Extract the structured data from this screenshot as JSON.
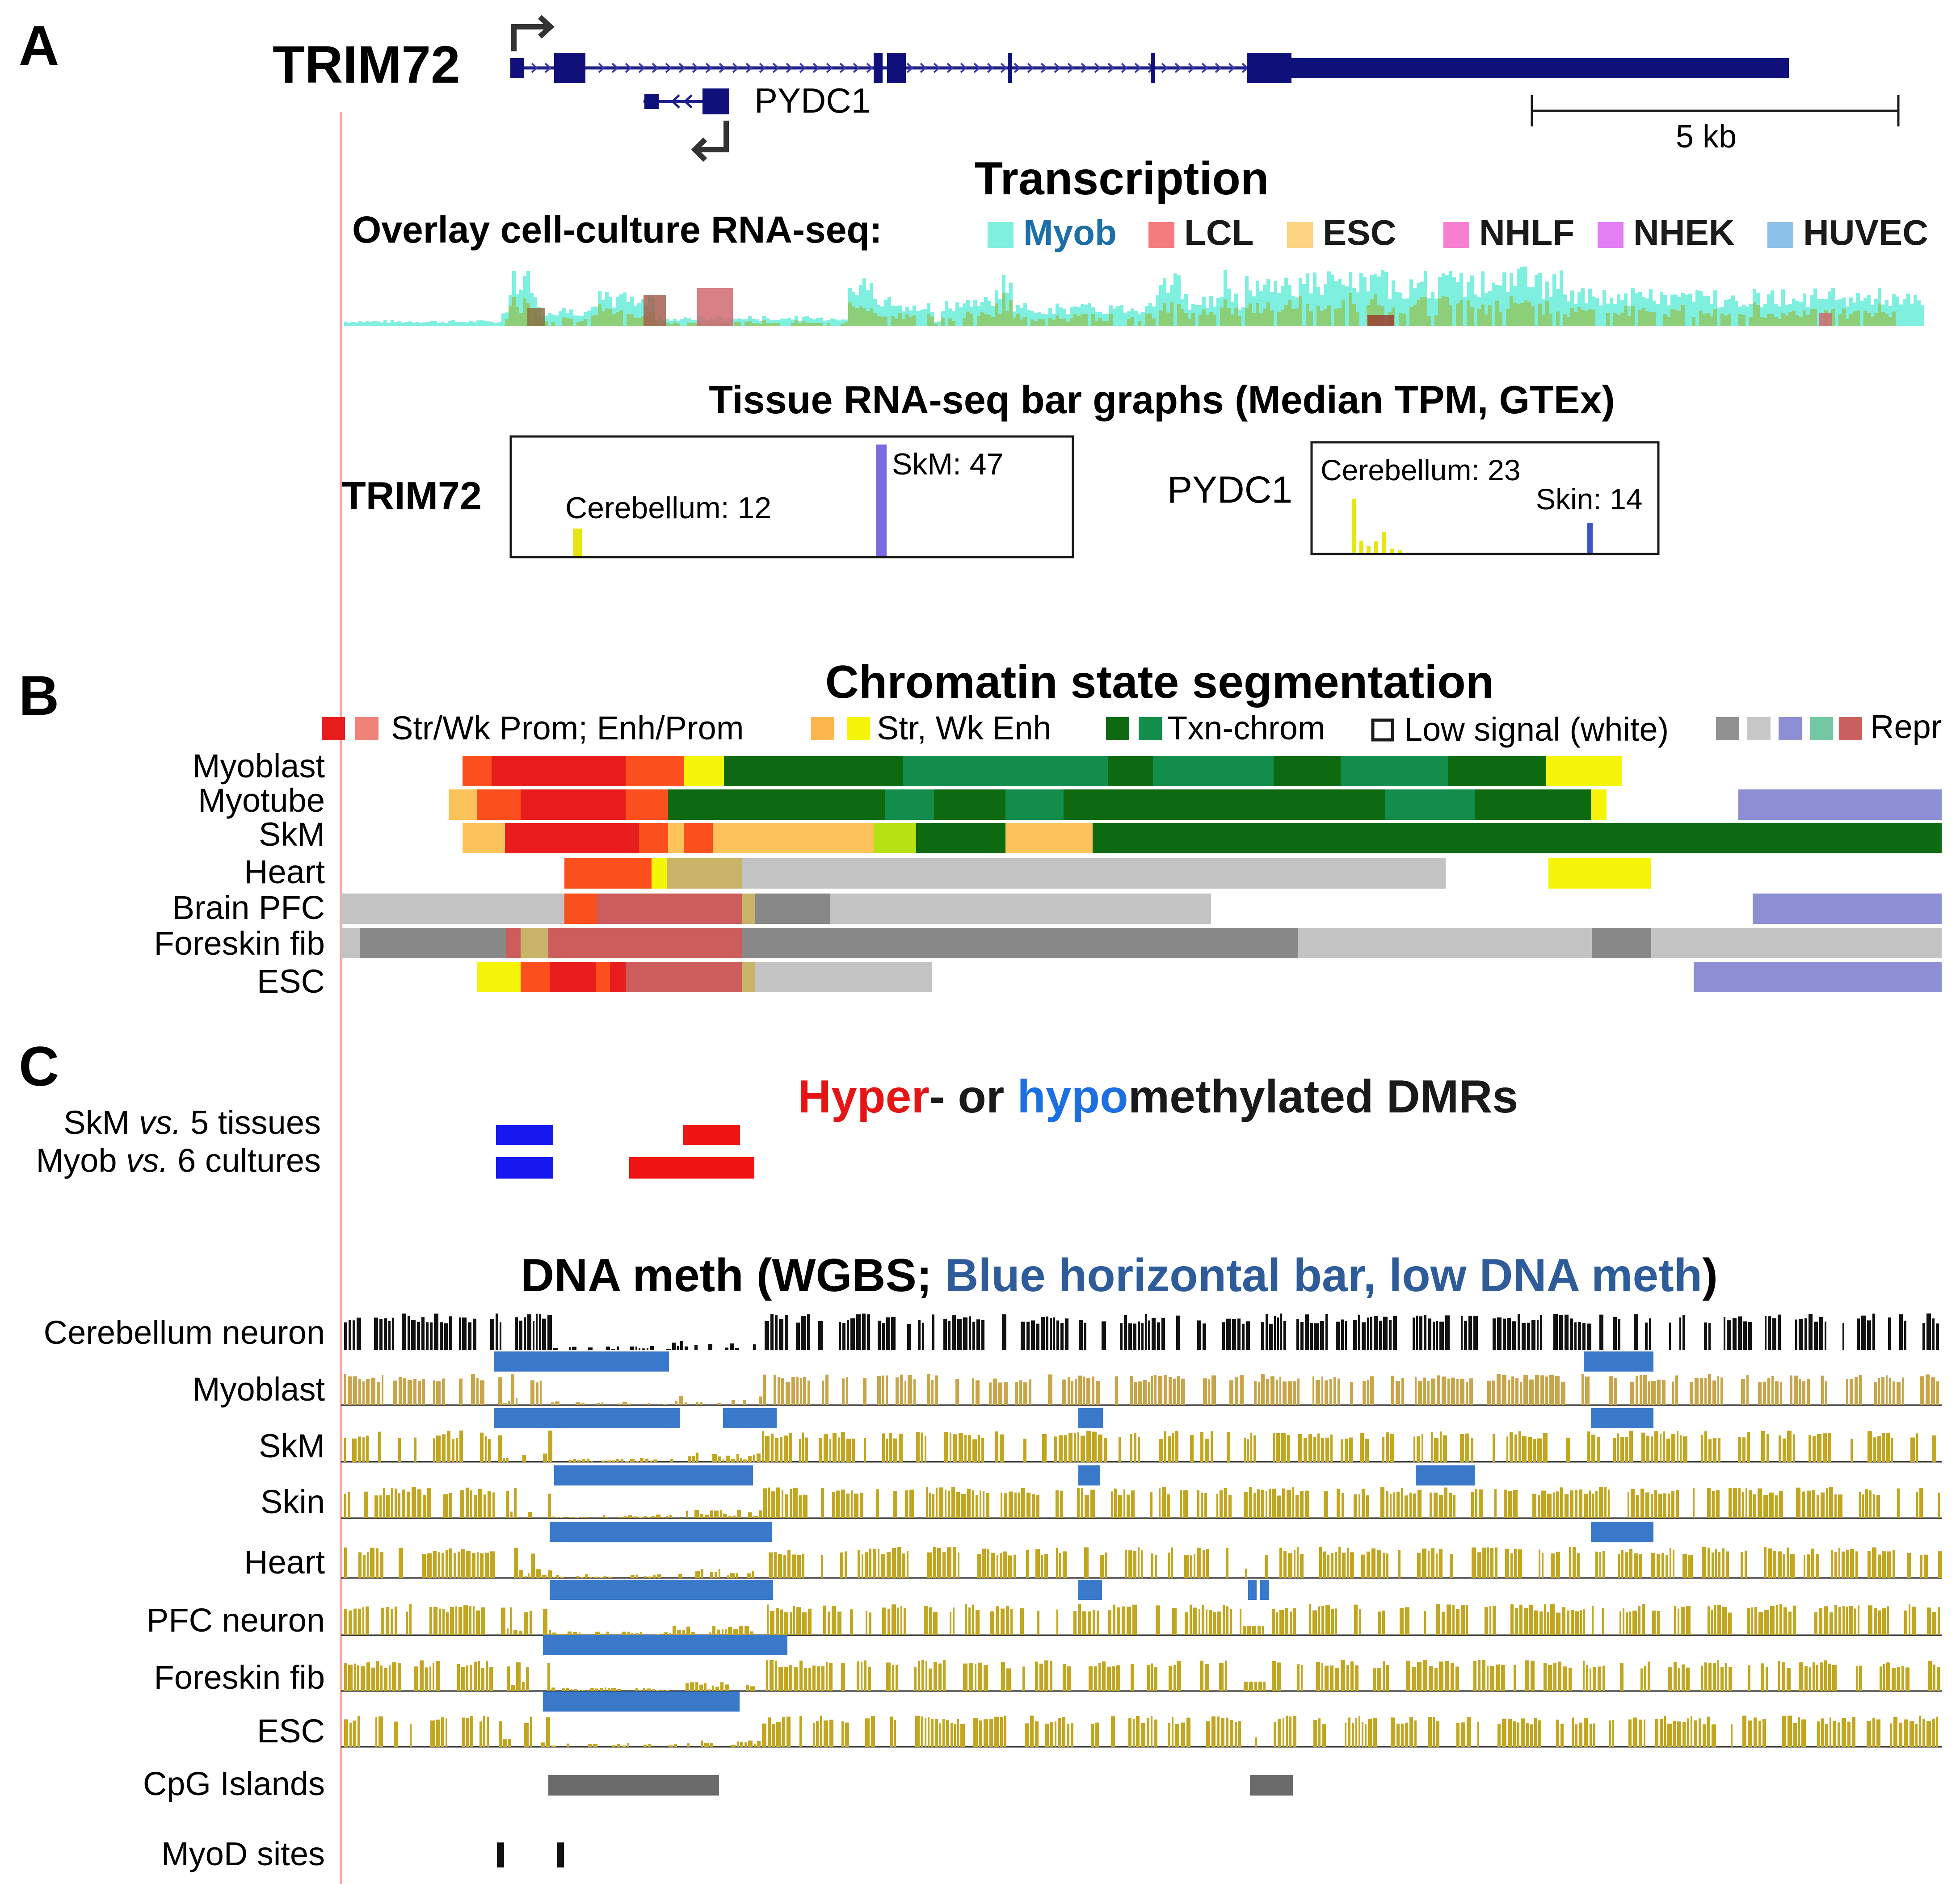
{
  "panels": {
    "a": "A",
    "b": "B",
    "c": "C"
  },
  "gene_model": {
    "gene": "TRIM72",
    "antisense_gene": "PYDC1",
    "scale_label": "5 kb"
  },
  "transcription": {
    "title": "Transcription",
    "overlay_label": "Overlay cell-culture RNA-seq:",
    "legend": [
      {
        "name": "Myob",
        "color": "#7fefdf",
        "text_color": "#1d6fa8"
      },
      {
        "name": "LCL",
        "color": "#f47c7c",
        "text_color": "#1a1a1a"
      },
      {
        "name": "ESC",
        "color": "#fcd482",
        "text_color": "#1a1a1a"
      },
      {
        "name": "NHLF",
        "color": "#f77fd0",
        "text_color": "#1a1a1a"
      },
      {
        "name": "NHEK",
        "color": "#e37ef3",
        "text_color": "#1a1a1a"
      },
      {
        "name": "HUVEC",
        "color": "#8cc1ea",
        "text_color": "#1a1a1a"
      }
    ]
  },
  "tissue_rnaseq": {
    "title": "Tissue RNA-seq bar graphs (Median TPM, GTEx)",
    "trim72": {
      "gene": "TRIM72",
      "label1": "Cerebellum: 12",
      "label2": "SkM: 47",
      "value1": 12,
      "value2": 47
    },
    "pydc1": {
      "gene": "PYDC1",
      "label1": "Cerebellum: 23",
      "label2": "Skin: 14",
      "value1": 23,
      "value2": 14
    }
  },
  "chromatin": {
    "title": "Chromatin state segmentation",
    "legend": {
      "prom": "Str/Wk Prom; Enh/Prom",
      "enh": "Str, Wk Enh",
      "txn": "Txn-chrom",
      "low": "Low signal (white)",
      "repr": "Repr"
    },
    "rows": [
      "Myoblast",
      "Myotube",
      "SkM",
      "Heart",
      "Brain PFC",
      "Foreskin fib",
      "ESC"
    ]
  },
  "dmr": {
    "title_hyper": "Hyper",
    "title_mid": "- or ",
    "title_hypo": "hypo",
    "title_end": "methylated DMRs",
    "row1_pre": "SkM ",
    "row1_em": "vs.",
    "row1_post": " 5 tissues",
    "row2_pre": "Myob ",
    "row2_em": "vs.",
    "row2_post": " 6 cultures"
  },
  "dna_meth": {
    "title_pre": "DNA meth (WGBS; ",
    "title_blue": "Blue horizontal bar, low DNA meth",
    "title_post": ")",
    "rows": [
      "Cerebellum neuron",
      "Myoblast",
      "SkM",
      "Skin",
      "Heart",
      "PFC neuron",
      "Foreskin fib",
      "ESC"
    ]
  },
  "annotations": {
    "cpg": "CpG Islands",
    "myod": "MyoD sites"
  }
}
